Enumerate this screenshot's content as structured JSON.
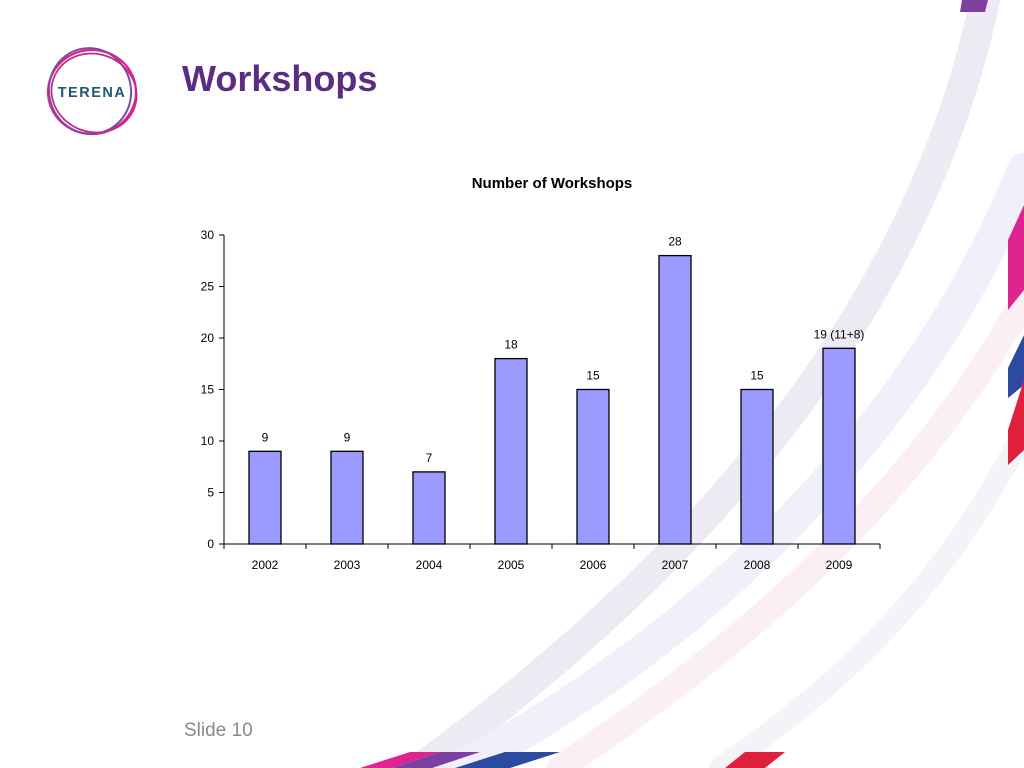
{
  "slide": {
    "title": "Workshops",
    "footer": "Slide 10"
  },
  "logo": {
    "text": "TERENA",
    "text_color": "#1f5870",
    "ring_colors": [
      "#e0248f",
      "#7a4aa6",
      "#c62a7b"
    ]
  },
  "theme": {
    "title_color": "#5a2d82",
    "bar_fill": "#9a9aff",
    "bar_stroke": "#000000",
    "deco_colors": [
      "#7d3fa0",
      "#e0248f",
      "#2b4aa0",
      "#e01f3d"
    ]
  },
  "chart_data": {
    "type": "bar",
    "title": "Number of Workshops",
    "xlabel": "",
    "ylabel": "",
    "categories": [
      "2002",
      "2003",
      "2004",
      "2005",
      "2006",
      "2007",
      "2008",
      "2009"
    ],
    "values": [
      9,
      9,
      7,
      18,
      15,
      28,
      15,
      19
    ],
    "data_labels": [
      "9",
      "9",
      "7",
      "18",
      "15",
      "28",
      "15",
      "19 (11+8)"
    ],
    "ylim": [
      0,
      30
    ],
    "yticks": [
      0,
      5,
      10,
      15,
      20,
      25,
      30
    ],
    "grid": false,
    "legend": "none"
  }
}
